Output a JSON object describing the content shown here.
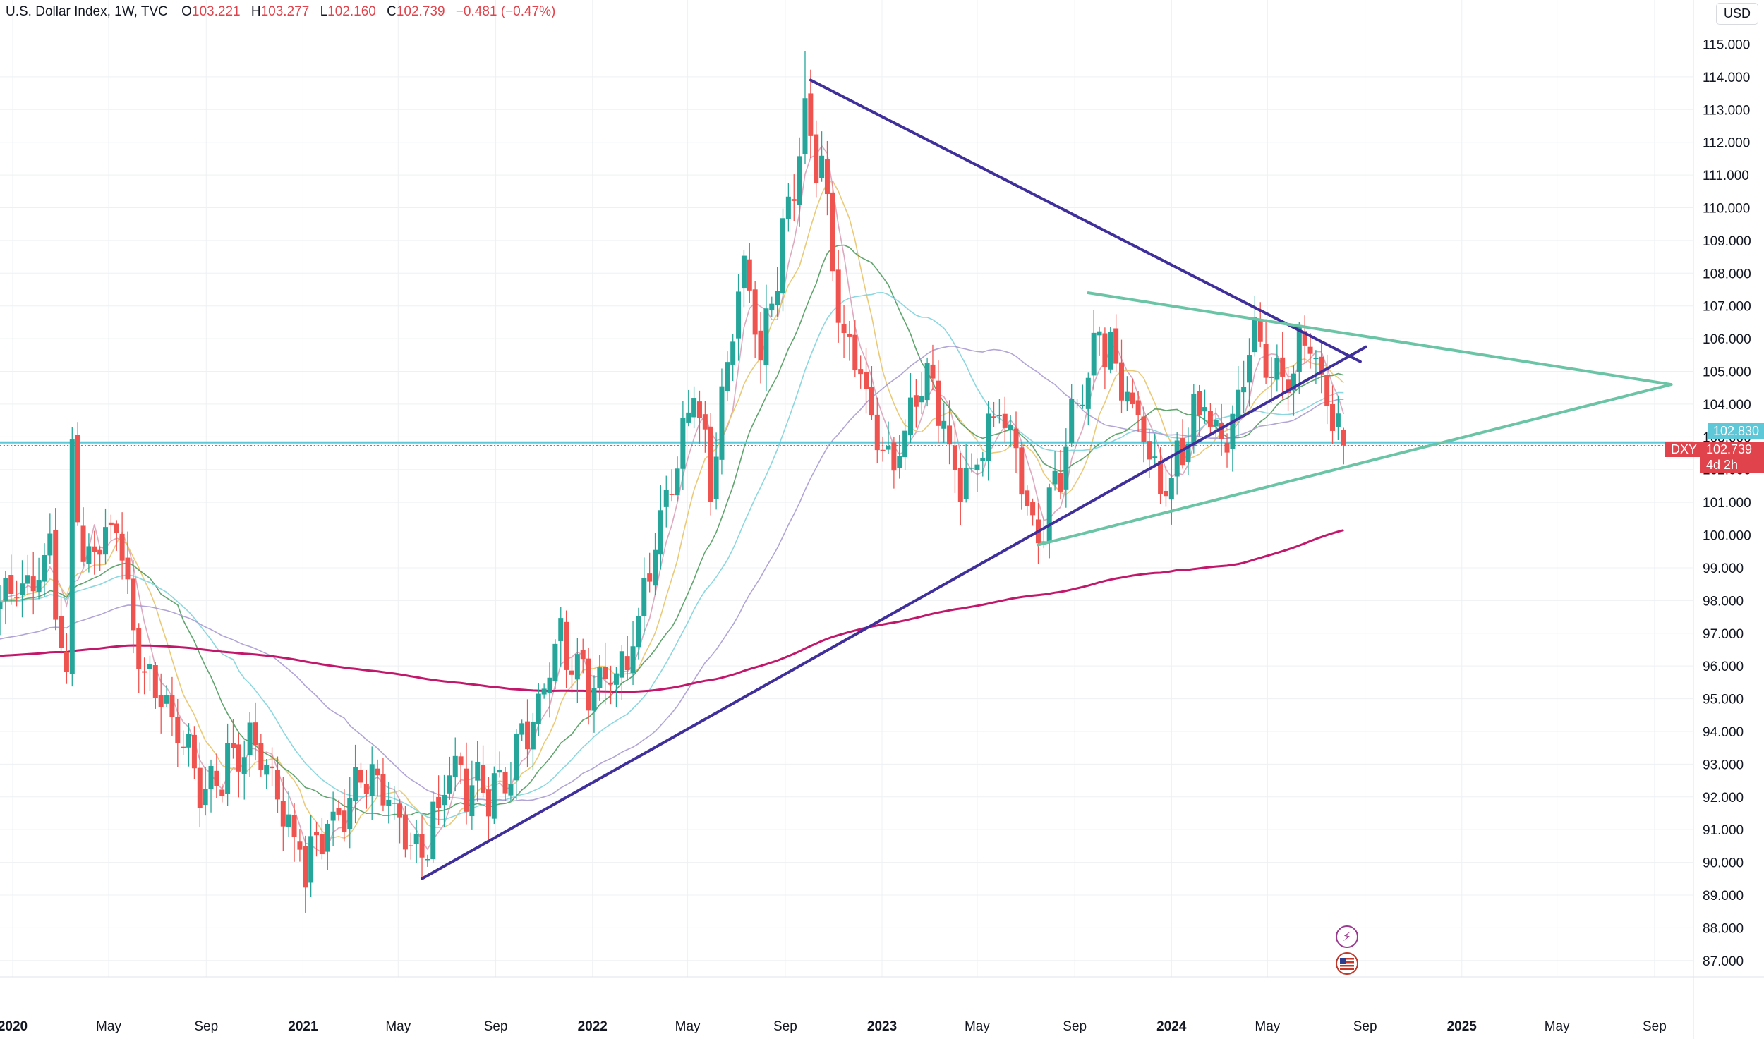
{
  "header": {
    "symbol": "U.S. Dollar Index, 1W, TVC",
    "open_label": "O",
    "open": "103.221",
    "high_label": "H",
    "high": "103.277",
    "low_label": "L",
    "low": "102.160",
    "close_label": "C",
    "close": "102.739",
    "change": "−0.481 (−0.47%)"
  },
  "currency_button": "USD",
  "price_tags": {
    "ref_level": "102.830",
    "ticker": "DXY",
    "last_price": "102.739",
    "countdown": "4d 2h"
  },
  "icons": [
    "flash-icon",
    "us-flag-icon"
  ],
  "colors": {
    "up": "#26a69a",
    "down": "#ef5350",
    "trendline_dark": "#3f2f9a",
    "trendline_teal": "#6bc4a6",
    "ref_line": "#5ec8d8",
    "ma_pink": "#d9a0b8",
    "ma_yellow": "#e8c46a",
    "ma_green": "#4f9a5e",
    "ma_cyan": "#7fd3dc",
    "ma_lavender": "#a99ad2",
    "ma_magenta": "#c2186b"
  },
  "chart_data": {
    "type": "candlestick",
    "interval": "1W",
    "y_range": [
      86.5,
      115.7
    ],
    "y_ticks": [
      "87.000",
      "88.000",
      "89.000",
      "90.000",
      "91.000",
      "92.000",
      "93.000",
      "94.000",
      "95.000",
      "96.000",
      "97.000",
      "98.000",
      "99.000",
      "100.000",
      "101.000",
      "102.000",
      "103.000",
      "104.000",
      "105.000",
      "106.000",
      "107.000",
      "108.000",
      "109.000",
      "110.000",
      "111.000",
      "112.000",
      "113.000",
      "114.000",
      "115.000"
    ],
    "x_range": [
      "2019-12-16",
      "2025-10-20"
    ],
    "x_ticks": [
      {
        "label": "2020",
        "date": "2020-01-01",
        "bold": true
      },
      {
        "label": "May",
        "date": "2020-05-01"
      },
      {
        "label": "Sep",
        "date": "2020-09-01"
      },
      {
        "label": "2021",
        "date": "2021-01-01",
        "bold": true
      },
      {
        "label": "May",
        "date": "2021-05-01"
      },
      {
        "label": "Sep",
        "date": "2021-09-01"
      },
      {
        "label": "2022",
        "date": "2022-01-01",
        "bold": true
      },
      {
        "label": "May",
        "date": "2022-05-01"
      },
      {
        "label": "Sep",
        "date": "2022-09-01"
      },
      {
        "label": "2023",
        "date": "2023-01-01",
        "bold": true
      },
      {
        "label": "May",
        "date": "2023-05-01"
      },
      {
        "label": "Sep",
        "date": "2023-09-01"
      },
      {
        "label": "2024",
        "date": "2024-01-01",
        "bold": true
      },
      {
        "label": "May",
        "date": "2024-05-01"
      },
      {
        "label": "Sep",
        "date": "2024-09-01"
      },
      {
        "label": "2025",
        "date": "2025-01-01",
        "bold": true
      },
      {
        "label": "May",
        "date": "2025-05-01"
      },
      {
        "label": "Sep",
        "date": "2025-09-01"
      }
    ],
    "first_candle": "2019-12-16",
    "anchors": [
      [
        "2019-12-16",
        97.8
      ],
      [
        "2020-02-17",
        99.4
      ],
      [
        "2020-03-09",
        95.2
      ],
      [
        "2020-03-16",
        102.8
      ],
      [
        "2020-03-30",
        99.2
      ],
      [
        "2020-05-11",
        100.2
      ],
      [
        "2020-06-08",
        96.4
      ],
      [
        "2020-08-31",
        92.2
      ],
      [
        "2020-10-26",
        94.0
      ],
      [
        "2021-01-04",
        89.9
      ],
      [
        "2021-03-29",
        93.0
      ],
      [
        "2021-05-24",
        89.9
      ],
      [
        "2021-07-05",
        92.5
      ],
      [
        "2021-09-06",
        92.3
      ],
      [
        "2021-11-22",
        96.6
      ],
      [
        "2022-01-10",
        95.0
      ],
      [
        "2022-02-21",
        96.7
      ],
      [
        "2022-05-09",
        104.6
      ],
      [
        "2022-05-30",
        101.8
      ],
      [
        "2022-07-11",
        108.3
      ],
      [
        "2022-08-01",
        105.3
      ],
      [
        "2022-09-26",
        112.8
      ],
      [
        "2022-10-17",
        111.0
      ],
      [
        "2022-11-07",
        106.5
      ],
      [
        "2023-01-16",
        102.0
      ],
      [
        "2023-02-27",
        105.0
      ],
      [
        "2023-04-10",
        101.2
      ],
      [
        "2023-05-29",
        104.2
      ],
      [
        "2023-07-17",
        99.9
      ],
      [
        "2023-10-02",
        106.3
      ],
      [
        "2023-12-25",
        101.3
      ],
      [
        "2024-02-12",
        104.3
      ],
      [
        "2024-03-04",
        102.8
      ],
      [
        "2024-04-15",
        106.0
      ],
      [
        "2024-05-13",
        104.5
      ],
      [
        "2024-06-24",
        105.9
      ],
      [
        "2024-08-05",
        102.74
      ]
    ],
    "highlight_highs": [
      [
        "2020-03-16",
        103.0
      ],
      [
        "2022-09-26",
        114.78
      ],
      [
        "2021-01-04",
        89.2
      ],
      [
        "2024-08-05",
        103.277
      ]
    ],
    "last_candle": {
      "date": "2024-08-05",
      "open": 103.221,
      "high": 103.277,
      "low": 102.16,
      "close": 102.739
    },
    "reference_line": 102.83,
    "trendlines": [
      {
        "name": "descending-resistance",
        "color": "#3f2f9a",
        "points": [
          [
            "2022-10-03",
            113.9
          ],
          [
            "2024-08-26",
            105.3
          ]
        ]
      },
      {
        "name": "ascending-support",
        "color": "#3f2f9a",
        "points": [
          [
            "2021-05-31",
            89.5
          ],
          [
            "2024-09-02",
            105.75
          ]
        ]
      },
      {
        "name": "teal-upper",
        "color": "#6bc4a6",
        "points": [
          [
            "2023-09-18",
            107.4
          ],
          [
            "2025-09-22",
            104.6
          ]
        ]
      },
      {
        "name": "teal-lower",
        "color": "#6bc4a6",
        "points": [
          [
            "2023-07-17",
            99.7
          ],
          [
            "2025-09-22",
            104.6
          ]
        ]
      }
    ],
    "moving_averages": [
      {
        "name": "ma-5",
        "period": 5,
        "color": "#d9a0b8"
      },
      {
        "name": "ma-10",
        "period": 10,
        "color": "#e8c46a"
      },
      {
        "name": "ma-20",
        "period": 20,
        "color": "#4f9a5e"
      },
      {
        "name": "ma-30",
        "period": 30,
        "color": "#7fd3dc"
      },
      {
        "name": "ma-50",
        "period": 50,
        "color": "#a99ad2"
      },
      {
        "name": "ma-200",
        "period": 200,
        "color": "#c2186b"
      }
    ],
    "ma200_pre_history": 96.3,
    "ma50_seed": 96.8
  }
}
